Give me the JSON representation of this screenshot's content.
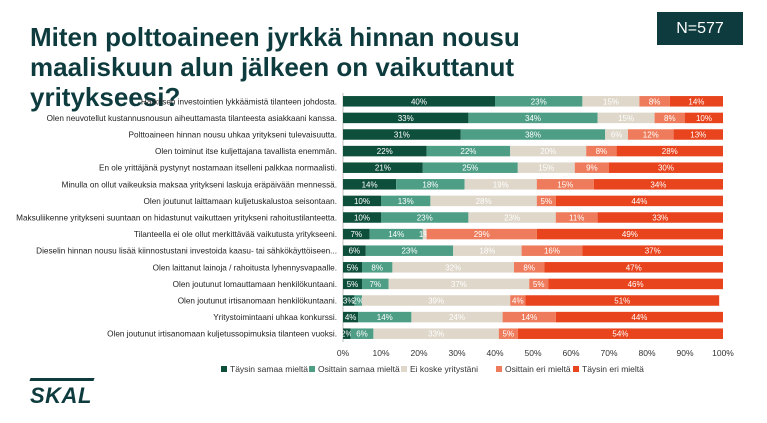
{
  "header": {
    "title_line1": "Miten polttoaineen jyrkkä hinnan nousu",
    "title_line2": "maaliskuun alun jälkeen on vaikuttanut yritykseesi?",
    "sample_size": "N=577"
  },
  "logo": {
    "text": "SKAL"
  },
  "chart_data": {
    "type": "bar",
    "orientation": "horizontal",
    "stacked": "percent",
    "title": "",
    "xlabel": "",
    "ylabel": "",
    "xlim": [
      0,
      100
    ],
    "x_ticks": [
      "0%",
      "10%",
      "20%",
      "30%",
      "40%",
      "50%",
      "60%",
      "70%",
      "80%",
      "90%",
      "100%"
    ],
    "legend_position": "bottom",
    "grid": false,
    "categories": [
      "Harkitsen investointien lykkäämistä tilanteen johdosta.",
      "Olen neuvotellut kustannusnousun aiheuttamasta tilanteesta asiakkaani kanssa.",
      "Polttoaineen hinnan nousu uhkaa yritykseni tulevaisuutta.",
      "Olen toiminut itse kuljettajana tavallista enemmän.",
      "En ole yrittäjänä pystynyt nostamaan itselleni palkkaa normaalisti.",
      "Minulla on ollut vaikeuksia maksaa yritykseni laskuja eräpäivään mennessä.",
      "Olen joutunut laittamaan kuljetuskalustoa seisontaan.",
      "Maksuliikenne yritykseni suuntaan on hidastunut vaikuttaen yritykseni rahoitustilanteetta.",
      "Tilanteella ei ole ollut merkittävää vaikutusta yritykseeni.",
      "Dieselin hinnan nousu lisää kiinnostustani investoida kaasu- tai sähkökäyttöiseen...",
      "Olen laittanut lainoja / rahoitusta lyhennysvapaalle.",
      "Olen joutunut lomauttamaan henkilökuntaani.",
      "Olen joutunut irtisanomaan henkilökuntaani.",
      "Yritystoimintaani uhkaa konkurssi.",
      "Olen joutunut irtisanomaan kuljetussopimuksia tilanteen vuoksi."
    ],
    "series": [
      {
        "name": "Täysin samaa mieltä",
        "color": "#0e4f3c",
        "label_color": "#ffffff",
        "values": [
          40,
          33,
          31,
          22,
          21,
          14,
          10,
          10,
          7,
          6,
          5,
          5,
          3,
          4,
          2
        ],
        "labels": [
          "40%",
          "33%",
          "31%",
          "22%",
          "21%",
          "14%",
          "10%",
          "10%",
          "7%",
          "6%",
          "5%",
          "5%",
          "3%",
          "4%",
          "2%"
        ]
      },
      {
        "name": "Osittain samaa mieltä",
        "color": "#4e9e86",
        "label_color": "#ffffff",
        "values": [
          23,
          34,
          38,
          22,
          25,
          18,
          13,
          23,
          14,
          23,
          8,
          7,
          2,
          14,
          6
        ],
        "labels": [
          "23%",
          "34%",
          "38%",
          "22%",
          "25%",
          "18%",
          "13%",
          "23%",
          "14%",
          "23%",
          "8%",
          "7%",
          "2%",
          "14%",
          "6%"
        ]
      },
      {
        "name": "Ei koske yritystäni",
        "color": "#ded7ca",
        "label_color": "#ffffff",
        "values": [
          15,
          15,
          6,
          20,
          15,
          19,
          28,
          23,
          1,
          18,
          32,
          37,
          39,
          24,
          33
        ],
        "labels": [
          "15%",
          "15%",
          "6%",
          "20%",
          "15%",
          "19%",
          "28%",
          "23%",
          "1%",
          "18%",
          "32%",
          "37%",
          "39%",
          "24%",
          "33%"
        ]
      },
      {
        "name": "Osittain eri mieltä",
        "color": "#ee7c5c",
        "label_color": "#ffffff",
        "values": [
          8,
          8,
          12,
          8,
          9,
          15,
          5,
          11,
          29,
          16,
          8,
          5,
          4,
          14,
          5
        ],
        "labels": [
          "8%",
          "8%",
          "12%",
          "8%",
          "9%",
          "15%",
          "5%",
          "11%",
          "29%",
          "16%",
          "8%",
          "5%",
          "4%",
          "14%",
          "5%"
        ]
      },
      {
        "name": "Täysin eri mieltä",
        "color": "#e8441d",
        "label_color": "#ffffff",
        "values": [
          14,
          10,
          13,
          28,
          30,
          34,
          44,
          33,
          49,
          37,
          47,
          46,
          51,
          44,
          54
        ],
        "labels": [
          "14%",
          "10%",
          "13%",
          "28%",
          "30%",
          "34%",
          "44%",
          "33%",
          "49%",
          "37%",
          "47%",
          "46%",
          "51%",
          "44%",
          "54%"
        ]
      }
    ]
  }
}
